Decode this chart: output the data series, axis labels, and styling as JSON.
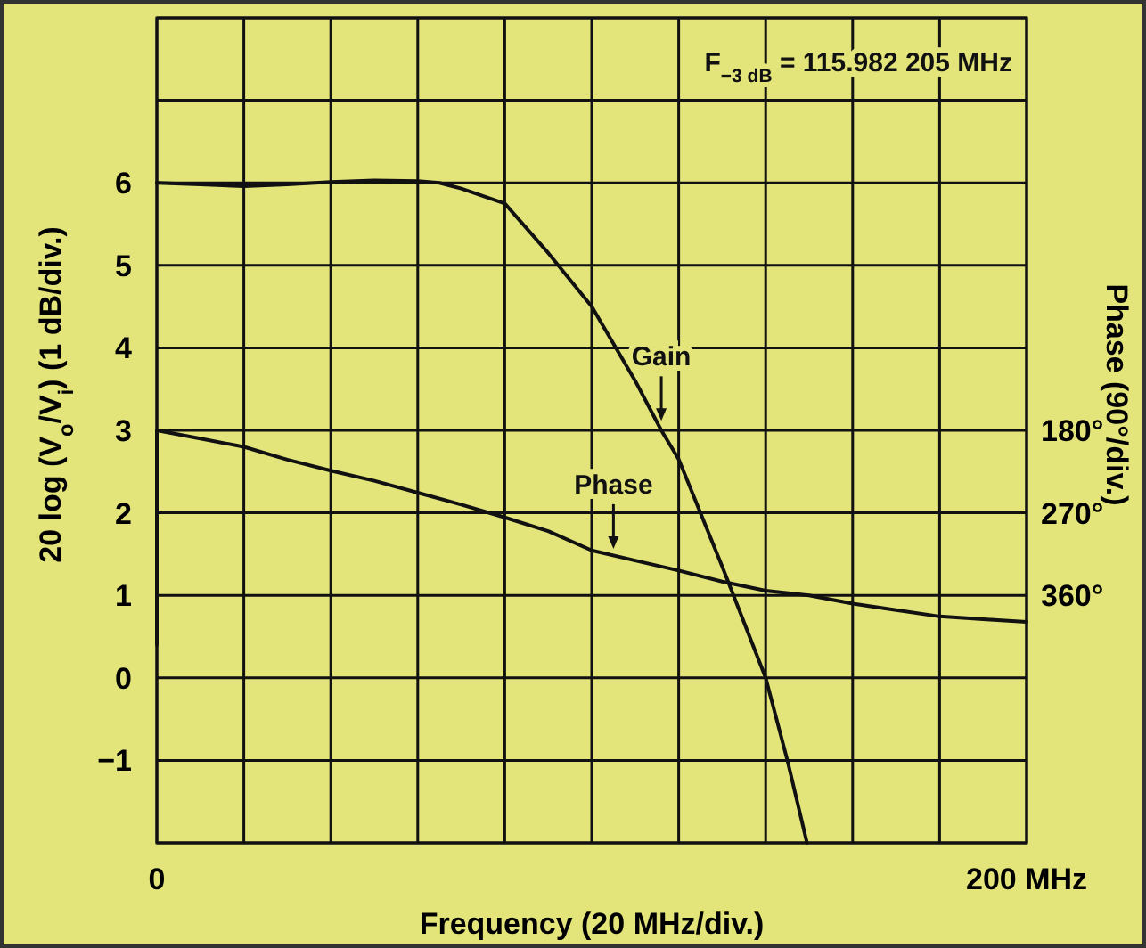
{
  "chart_data": {
    "type": "line",
    "xlabel": "Frequency (20 MHz/div.)",
    "ylabel": "20 log (V$_{o}$/V$_{i}$) (1 dB/div.)",
    "y2label": "Phase (90°/div.)",
    "annotations": [
      "F$_{−3 dB}$ = 115.982 205 MHz",
      {
        "text": "Gain",
        "x": 116,
        "y": 3.05
      },
      {
        "text": "Phase",
        "x": 105,
        "y": 1.5
      }
    ],
    "xlim": [
      0,
      200
    ],
    "xticks": [
      0,
      {
        "value": 20,
        "label": null
      },
      {
        "value": 40,
        "label": null
      },
      {
        "value": 60,
        "label": null
      },
      {
        "value": 80,
        "label": null
      },
      {
        "value": 100,
        "label": null
      },
      {
        "value": 120,
        "label": null
      },
      {
        "value": 140,
        "label": null
      },
      {
        "value": 160,
        "label": null
      },
      {
        "value": 180,
        "label": null
      },
      {
        "value": 200,
        "label": "200 MHz"
      }
    ],
    "ylim": [
      -2,
      8
    ],
    "yticks": [
      {
        "value": -2,
        "label": null
      },
      {
        "value": -1,
        "label": "−1"
      },
      0,
      1,
      2,
      3,
      4,
      5,
      6,
      {
        "value": 7,
        "label": null
      },
      {
        "value": 8,
        "label": null
      }
    ],
    "y2lim": [
      630,
      -270
    ],
    "y2ticks": [
      {
        "value": 180,
        "label": "180°"
      },
      {
        "value": 270,
        "label": "270°"
      },
      {
        "value": 360,
        "label": "360°"
      }
    ],
    "grid": true,
    "series": [
      {
        "color": "#111111",
        "x": [
          0,
          10,
          20,
          30,
          40,
          50,
          60,
          65,
          70,
          80,
          90,
          100,
          110,
          116,
          120,
          130,
          140,
          145,
          149.5
        ],
        "values": [
          6,
          5.98,
          5.96,
          5.98,
          6.01,
          6.03,
          6.02,
          6.0,
          5.93,
          5.75,
          5.15,
          4.5,
          3.6,
          3.0,
          2.65,
          1.35,
          0.0,
          -1.0,
          -2.0
        ]
      },
      {
        "color": "#111111",
        "axis": "y2",
        "x": [
          0,
          0,
          10,
          20,
          30,
          40,
          50,
          60,
          70,
          80,
          90,
          100,
          110,
          120,
          130,
          140,
          150,
          160,
          170,
          180,
          190,
          200
        ],
        "values": [
          414,
          180,
          189,
          198,
          212,
          224,
          235,
          248,
          261,
          275,
          290,
          311,
          322,
          333,
          345,
          355,
          360,
          369,
          376,
          383,
          386,
          389
        ]
      }
    ]
  }
}
